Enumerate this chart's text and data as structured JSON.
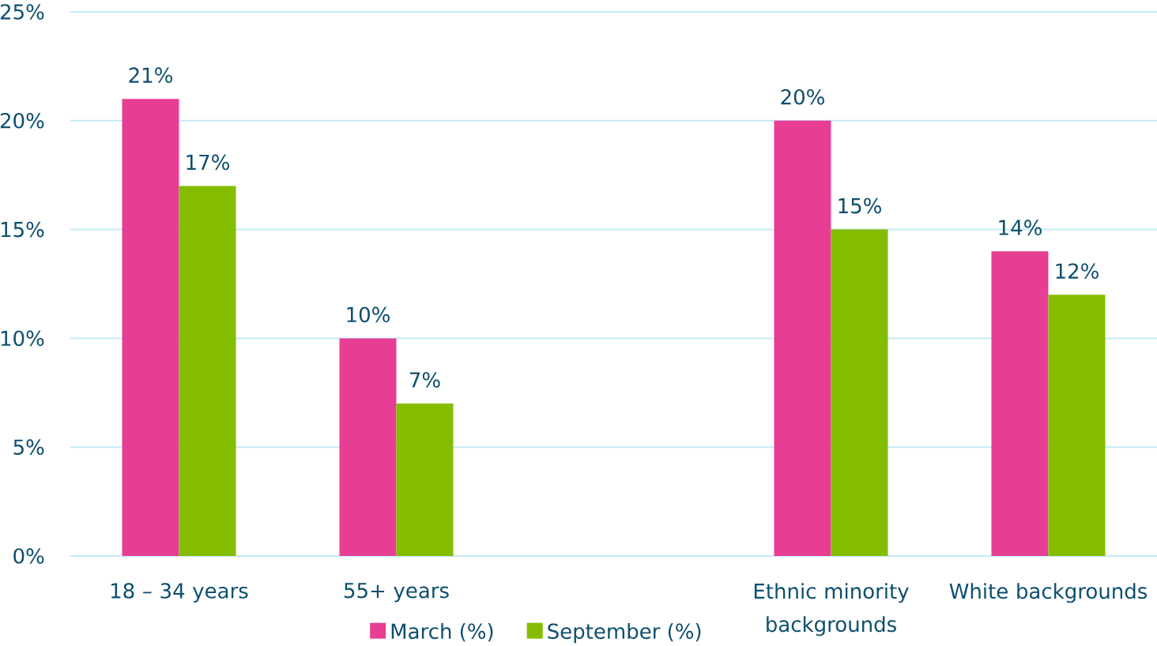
{
  "chart_data": {
    "type": "bar",
    "categories": [
      "18 – 34 years",
      "55+ years",
      null,
      "Ethnic minority backgrounds",
      "White backgrounds"
    ],
    "series": [
      {
        "name": "March (%)",
        "color": "#e73e93",
        "values": [
          21,
          10,
          null,
          20,
          14
        ],
        "value_labels": [
          "21%",
          "10%",
          null,
          "20%",
          "14%"
        ]
      },
      {
        "name": "September (%)",
        "color": "#84bd00",
        "values": [
          17,
          7,
          null,
          15,
          12
        ],
        "value_labels": [
          "17%",
          "7%",
          null,
          "15%",
          "12%"
        ]
      }
    ],
    "ylim": [
      0,
      25
    ],
    "yticks": [
      {
        "value": 0,
        "label": "0%"
      },
      {
        "value": 5,
        "label": "5%"
      },
      {
        "value": 10,
        "label": "10%"
      },
      {
        "value": 15,
        "label": "15%"
      },
      {
        "value": 20,
        "label": "20%"
      },
      {
        "value": 25,
        "label": "25%"
      }
    ],
    "grid": "y",
    "legend": "bottom"
  }
}
